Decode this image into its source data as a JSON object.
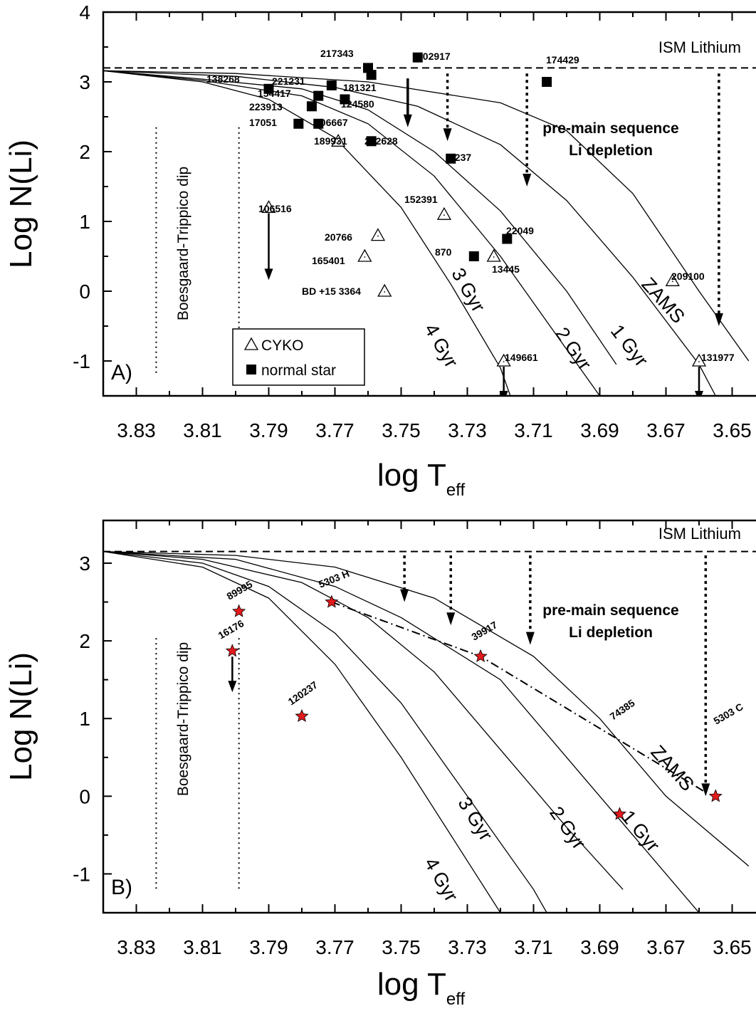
{
  "chart_data": [
    {
      "type": "scatter",
      "panel": "A)",
      "xlabel": "log T",
      "xlabel_sub": "eff",
      "ylabel": "Log N(Li)",
      "xlim": [
        3.84,
        3.64
      ],
      "ylim": [
        -1.5,
        4
      ],
      "x_ticks": [
        "3.83",
        "3.81",
        "3.79",
        "3.77",
        "3.75",
        "3.73",
        "3.71",
        "3.69",
        "3.67",
        "3.65"
      ],
      "y_ticks": [
        "4",
        "3",
        "2",
        "1",
        "0",
        "-1"
      ],
      "ism_label": "ISM Lithium",
      "ism_y": 3.2,
      "note_lines": [
        "pre-main sequence",
        "Li depletion"
      ],
      "dip_label": "Boesgaard-Trippico dip",
      "legend": [
        {
          "marker": "triangle",
          "label": "CYKO"
        },
        {
          "marker": "square",
          "label": "normal star"
        }
      ],
      "isochrones": [
        {
          "label": "4 Gyr",
          "points": [
            [
              3.84,
              3.16
            ],
            [
              3.81,
              3.0
            ],
            [
              3.79,
              2.75
            ],
            [
              3.77,
              2.2
            ],
            [
              3.75,
              1.2
            ],
            [
              3.735,
              0.1
            ],
            [
              3.72,
              -1.1
            ],
            [
              3.717,
              -1.5
            ]
          ]
        },
        {
          "label": "3 Gyr",
          "points": [
            [
              3.84,
              3.16
            ],
            [
              3.81,
              3.02
            ],
            [
              3.78,
              2.8
            ],
            [
              3.76,
              2.4
            ],
            [
              3.74,
              1.65
            ],
            [
              3.72,
              0.5
            ],
            [
              3.705,
              -0.5
            ],
            [
              3.69,
              -1.5
            ]
          ]
        },
        {
          "label": "2 Gyr",
          "points": [
            [
              3.84,
              3.16
            ],
            [
              3.81,
              3.04
            ],
            [
              3.78,
              2.9
            ],
            [
              3.76,
              2.6
            ],
            [
              3.74,
              2.0
            ],
            [
              3.72,
              1.15
            ],
            [
              3.7,
              0.0
            ],
            [
              3.685,
              -1.05
            ]
          ]
        },
        {
          "label": "1 Gyr",
          "points": [
            [
              3.84,
              3.16
            ],
            [
              3.8,
              3.08
            ],
            [
              3.77,
              2.92
            ],
            [
              3.745,
              2.65
            ],
            [
              3.72,
              2.1
            ],
            [
              3.7,
              1.3
            ],
            [
              3.68,
              0.2
            ],
            [
              3.66,
              -1.05
            ],
            [
              3.655,
              -1.5
            ]
          ]
        },
        {
          "label": "ZAMS",
          "points": [
            [
              3.84,
              3.16
            ],
            [
              3.8,
              3.12
            ],
            [
              3.76,
              3.0
            ],
            [
              3.72,
              2.7
            ],
            [
              3.7,
              2.3
            ],
            [
              3.68,
              1.4
            ],
            [
              3.66,
              0.0
            ],
            [
              3.645,
              -1.0
            ]
          ]
        }
      ],
      "depletion_arrows": [
        {
          "x": 3.748,
          "y_from": 3.05,
          "y_to": 2.35,
          "style": "solid"
        },
        {
          "x": 3.736,
          "y_from": 3.12,
          "y_to": 2.15,
          "style": "dotted"
        },
        {
          "x": 3.712,
          "y_from": 3.12,
          "y_to": 1.5,
          "style": "dotted"
        },
        {
          "x": 3.654,
          "y_from": 3.12,
          "y_to": -0.5,
          "style": "dotted"
        }
      ],
      "dip_lines": [
        3.824,
        3.799
      ],
      "points": [
        {
          "star": "217343",
          "x": 3.76,
          "y": 3.2,
          "marker": "square"
        },
        {
          "star": "202917",
          "x": 3.745,
          "y": 3.35,
          "marker": "square"
        },
        {
          "star": "181321",
          "x": 3.759,
          "y": 3.1,
          "marker": "square"
        },
        {
          "star": "174429",
          "x": 3.706,
          "y": 3.0,
          "marker": "square"
        },
        {
          "star": "138268",
          "x": 3.79,
          "y": 2.9,
          "marker": "square"
        },
        {
          "star": "221231",
          "x": 3.771,
          "y": 2.95,
          "marker": "square"
        },
        {
          "star": "154417",
          "x": 3.775,
          "y": 2.8,
          "marker": "square"
        },
        {
          "star": "124580",
          "x": 3.767,
          "y": 2.75,
          "marker": "square"
        },
        {
          "star": "223913",
          "x": 3.777,
          "y": 2.65,
          "marker": "square"
        },
        {
          "star": "17051",
          "x": 3.781,
          "y": 2.4,
          "marker": "square"
        },
        {
          "star": "206667",
          "x": 3.775,
          "y": 2.4,
          "marker": "square"
        },
        {
          "star": "189931",
          "x": 3.769,
          "y": 2.15,
          "marker": "triangle"
        },
        {
          "star": "202628",
          "x": 3.759,
          "y": 2.15,
          "marker": "square"
        },
        {
          "star": "1237",
          "x": 3.735,
          "y": 1.9,
          "marker": "square"
        },
        {
          "star": "106516",
          "x": 3.79,
          "y": 1.2,
          "marker": "triangle",
          "upper_limit": true
        },
        {
          "star": "152391",
          "x": 3.737,
          "y": 1.1,
          "marker": "triangle"
        },
        {
          "star": "20766",
          "x": 3.757,
          "y": 0.8,
          "marker": "triangle"
        },
        {
          "star": "22049",
          "x": 3.718,
          "y": 0.75,
          "marker": "square"
        },
        {
          "star": "165401",
          "x": 3.761,
          "y": 0.5,
          "marker": "triangle"
        },
        {
          "star": "870",
          "x": 3.728,
          "y": 0.5,
          "marker": "square"
        },
        {
          "star": "13445",
          "x": 3.722,
          "y": 0.5,
          "marker": "triangle"
        },
        {
          "star": "BD +15 3364",
          "x": 3.755,
          "y": 0.0,
          "marker": "triangle"
        },
        {
          "star": "209100",
          "x": 3.668,
          "y": 0.15,
          "marker": "triangle"
        },
        {
          "star": "149661",
          "x": 3.719,
          "y": -1.0,
          "marker": "triangle",
          "upper_limit": true
        },
        {
          "star": "131977",
          "x": 3.66,
          "y": -1.0,
          "marker": "triangle",
          "upper_limit": true
        }
      ]
    },
    {
      "type": "scatter",
      "panel": "B)",
      "xlabel": "log T",
      "xlabel_sub": "eff",
      "ylabel": "Log N(Li)",
      "xlim": [
        3.84,
        3.64
      ],
      "ylim": [
        -1.5,
        3.55
      ],
      "x_ticks": [
        "3.83",
        "3.81",
        "3.79",
        "3.77",
        "3.75",
        "3.73",
        "3.71",
        "3.69",
        "3.67",
        "3.65"
      ],
      "y_ticks": [
        "3",
        "2",
        "1",
        "0",
        "-1"
      ],
      "ism_label": "ISM Lithium",
      "ism_y": 3.15,
      "note_lines": [
        "pre-main sequence",
        "Li depletion"
      ],
      "dip_label": "Boesgaard-Trippico dip",
      "isochrones": [
        {
          "label": "4 Gyr",
          "points": [
            [
              3.84,
              3.15
            ],
            [
              3.81,
              2.95
            ],
            [
              3.79,
              2.55
            ],
            [
              3.77,
              1.7
            ],
            [
              3.75,
              0.5
            ],
            [
              3.735,
              -0.5
            ],
            [
              3.72,
              -1.5
            ]
          ]
        },
        {
          "label": "3 Gyr",
          "points": [
            [
              3.84,
              3.15
            ],
            [
              3.81,
              3.0
            ],
            [
              3.79,
              2.7
            ],
            [
              3.77,
              2.1
            ],
            [
              3.75,
              1.2
            ],
            [
              3.73,
              0.0
            ],
            [
              3.71,
              -1.2
            ],
            [
              3.706,
              -1.5
            ]
          ]
        },
        {
          "label": "2 Gyr",
          "points": [
            [
              3.84,
              3.15
            ],
            [
              3.81,
              3.05
            ],
            [
              3.78,
              2.75
            ],
            [
              3.76,
              2.3
            ],
            [
              3.74,
              1.6
            ],
            [
              3.72,
              0.6
            ],
            [
              3.7,
              -0.4
            ],
            [
              3.683,
              -1.2
            ]
          ]
        },
        {
          "label": "1 Gyr",
          "points": [
            [
              3.84,
              3.15
            ],
            [
              3.8,
              3.05
            ],
            [
              3.77,
              2.7
            ],
            [
              3.75,
              2.3
            ],
            [
              3.72,
              1.5
            ],
            [
              3.7,
              0.5
            ],
            [
              3.68,
              -0.5
            ],
            [
              3.66,
              -1.5
            ]
          ]
        },
        {
          "label": "ZAMS",
          "points": [
            [
              3.84,
              3.15
            ],
            [
              3.8,
              3.1
            ],
            [
              3.77,
              2.95
            ],
            [
              3.74,
              2.55
            ],
            [
              3.71,
              1.8
            ],
            [
              3.69,
              1.0
            ],
            [
              3.67,
              0.0
            ],
            [
              3.645,
              -0.9
            ]
          ]
        }
      ],
      "depletion_arrows": [
        {
          "x": 3.749,
          "y_from": 3.1,
          "y_to": 2.5,
          "style": "dotted"
        },
        {
          "x": 3.735,
          "y_from": 3.1,
          "y_to": 2.2,
          "style": "dotted"
        },
        {
          "x": 3.711,
          "y_from": 3.1,
          "y_to": 1.95,
          "style": "dotted"
        },
        {
          "x": 3.658,
          "y_from": 3.1,
          "y_to": 0.0,
          "style": "dotted"
        }
      ],
      "dip_lines": [
        3.824,
        3.799
      ],
      "binary_link": [
        [
          3.771,
          2.5
        ],
        [
          3.726,
          1.8
        ],
        [
          3.658,
          0.05
        ]
      ],
      "points": [
        {
          "star": "89995",
          "x": 3.799,
          "y": 2.38,
          "marker": "star"
        },
        {
          "star": "5303 H",
          "x": 3.771,
          "y": 2.5,
          "marker": "star"
        },
        {
          "star": "16176",
          "x": 3.801,
          "y": 1.87,
          "marker": "star",
          "upper_limit": true
        },
        {
          "star": "39917",
          "x": 3.726,
          "y": 1.8,
          "marker": "star"
        },
        {
          "star": "120237",
          "x": 3.78,
          "y": 1.03,
          "marker": "star"
        },
        {
          "star": "74385",
          "x": 3.684,
          "y": -0.23,
          "marker": "star"
        },
        {
          "star": "5303 C",
          "x": 3.655,
          "y": 0.0,
          "marker": "star"
        }
      ]
    }
  ]
}
